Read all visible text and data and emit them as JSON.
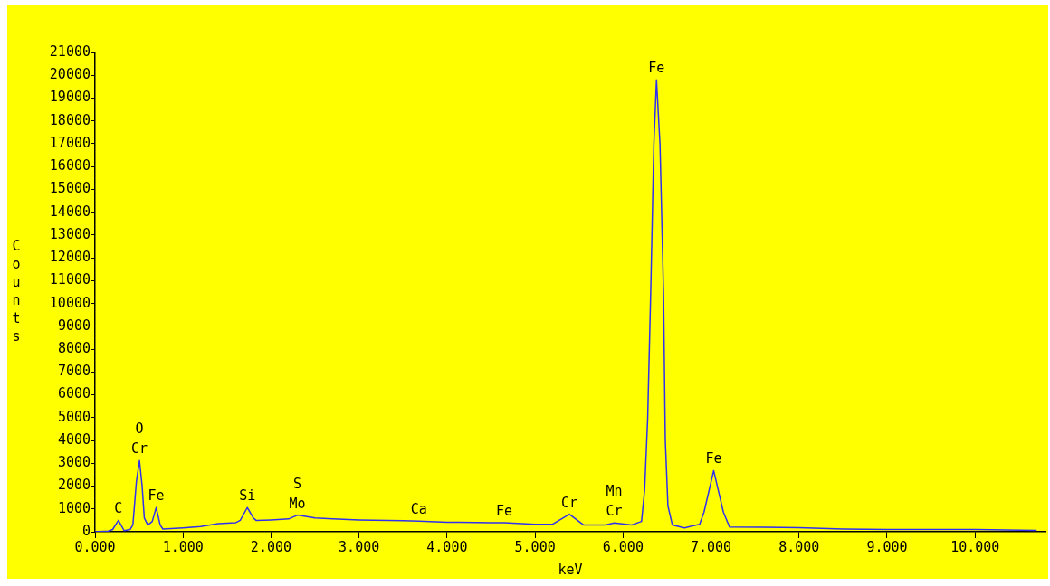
{
  "chart_data": {
    "type": "line",
    "xlabel": "keV",
    "ylabel": "Counts",
    "color": "#3030f0",
    "grid": false,
    "legend": false,
    "marker": "none",
    "line_style": "solid",
    "xlim": [
      0,
      10.8
    ],
    "xticks": [
      {
        "value": 0,
        "label": "0.000"
      },
      {
        "value": 1,
        "label": "1.000"
      },
      {
        "value": 2,
        "label": "2.000"
      },
      {
        "value": 3,
        "label": "3.000"
      },
      {
        "value": 4,
        "label": "4.000"
      },
      {
        "value": 5,
        "label": "5.000"
      },
      {
        "value": 6,
        "label": "6.000"
      },
      {
        "value": 7,
        "label": "7.000"
      },
      {
        "value": 8,
        "label": "8.000"
      },
      {
        "value": 9,
        "label": "9.000"
      },
      {
        "value": 10,
        "label": "10.000"
      }
    ],
    "ylim": [
      0,
      21000
    ],
    "yticks": [
      0,
      1000,
      2000,
      3000,
      4000,
      5000,
      6000,
      7000,
      8000,
      9000,
      10000,
      11000,
      12000,
      13000,
      14000,
      15000,
      16000,
      17000,
      18000,
      19000,
      20000,
      21000
    ],
    "x": [
      0,
      0.15,
      0.2,
      0.266,
      0.33,
      0.4,
      0.43,
      0.47,
      0.505,
      0.535,
      0.56,
      0.6,
      0.65,
      0.695,
      0.74,
      0.77,
      1.0,
      1.2,
      1.4,
      1.6,
      1.65,
      1.73,
      1.8,
      1.83,
      2.0,
      2.2,
      2.3,
      2.5,
      2.7,
      3.0,
      3.5,
      3.68,
      4.0,
      4.5,
      4.65,
      5.0,
      5.2,
      5.39,
      5.55,
      5.8,
      5.9,
      6.1,
      6.18,
      6.21,
      6.245,
      6.28,
      6.315,
      6.35,
      6.38,
      6.42,
      6.46,
      6.48,
      6.51,
      6.56,
      6.7,
      6.87,
      6.92,
      7.03,
      7.14,
      7.21,
      7.6,
      8.0,
      8.5,
      9.0,
      10.0,
      10.7
    ],
    "values": [
      0,
      30,
      100,
      500,
      50,
      100,
      300,
      2200,
      3120,
      2000,
      600,
      290,
      450,
      1060,
      300,
      120,
      170,
      230,
      360,
      400,
      500,
      1060,
      600,
      500,
      520,
      560,
      730,
      600,
      560,
      520,
      490,
      470,
      420,
      400,
      400,
      330,
      330,
      770,
      300,
      300,
      390,
      300,
      410,
      450,
      1820,
      4980,
      10620,
      16950,
      19800,
      16950,
      10480,
      4020,
      1130,
      300,
      170,
      330,
      860,
      2680,
      860,
      210,
      200,
      180,
      120,
      100,
      100,
      60
    ],
    "annotations": [
      {
        "text": "C",
        "x": 0.266,
        "y": 500
      },
      {
        "text": "Cr",
        "x": 0.505,
        "y": 3120
      },
      {
        "text": "O",
        "x": 0.505,
        "y": 3120
      },
      {
        "text": "Fe",
        "x": 0.695,
        "y": 1060
      },
      {
        "text": "Si",
        "x": 1.73,
        "y": 1060
      },
      {
        "text": "Mo",
        "x": 2.3,
        "y": 730
      },
      {
        "text": "S",
        "x": 2.3,
        "y": 730
      },
      {
        "text": "Ca",
        "x": 3.68,
        "y": 470
      },
      {
        "text": "Fe",
        "x": 4.65,
        "y": 400
      },
      {
        "text": "Cr",
        "x": 5.39,
        "y": 770
      },
      {
        "text": "Cr",
        "x": 5.9,
        "y": 390
      },
      {
        "text": "Mn",
        "x": 5.9,
        "y": 390
      },
      {
        "text": "Fe",
        "x": 6.38,
        "y": 19800
      },
      {
        "text": "Fe",
        "x": 7.03,
        "y": 2680
      }
    ]
  }
}
